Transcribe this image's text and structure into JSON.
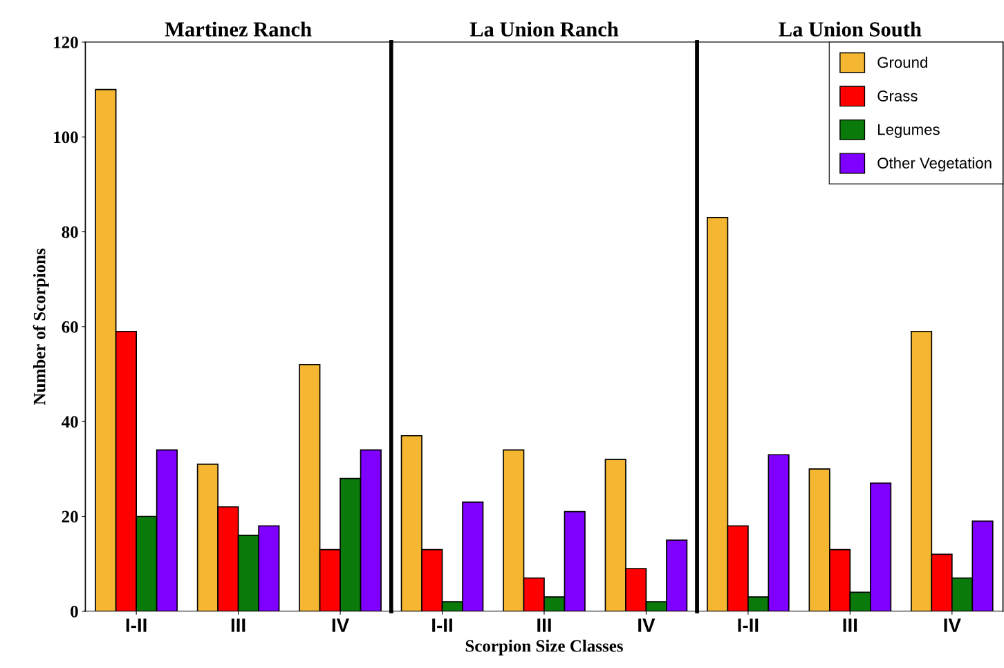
{
  "chart_data": [
    {
      "type": "bar",
      "title": "Martinez Ranch",
      "ylabel": "Number of Scorpions",
      "categories": [
        "I-II",
        "III",
        "IV"
      ],
      "ylim": [
        0,
        120
      ],
      "yticks": [
        0,
        20,
        40,
        60,
        80,
        100,
        120
      ],
      "grid": false,
      "series": [
        {
          "color": "#f5b731",
          "values": [
            110,
            31,
            52
          ]
        },
        {
          "color": "#ff0000",
          "values": [
            59,
            22,
            13
          ]
        },
        {
          "color": "#0a7a0a",
          "values": [
            20,
            16,
            28
          ]
        },
        {
          "color": "#8000ff",
          "values": [
            34,
            18,
            34
          ]
        }
      ]
    },
    {
      "type": "bar",
      "title": "La Union Ranch",
      "xlabel": "Scorpion Size Classes",
      "categories": [
        "I-II",
        "III",
        "IV"
      ],
      "ylim": [
        0,
        120
      ],
      "tick_labels": "x",
      "grid": false,
      "series": [
        {
          "color": "#f5b731",
          "values": [
            37,
            34,
            32
          ]
        },
        {
          "color": "#ff0000",
          "values": [
            13,
            7,
            9
          ]
        },
        {
          "color": "#0a7a0a",
          "values": [
            2,
            3,
            2
          ]
        },
        {
          "color": "#8000ff",
          "values": [
            23,
            21,
            15
          ]
        }
      ]
    },
    {
      "type": "bar",
      "title": "La Union South",
      "categories": [
        "I-II",
        "III",
        "IV"
      ],
      "ylim": [
        0,
        120
      ],
      "tick_labels": "x",
      "grid": false,
      "legend": "top right",
      "series": [
        {
          "name": "Ground",
          "color": "#f5b731",
          "values": [
            83,
            30,
            59
          ]
        },
        {
          "name": "Grass",
          "color": "#ff0000",
          "values": [
            18,
            13,
            12
          ]
        },
        {
          "name": "Legumes",
          "color": "#0a7a0a",
          "values": [
            3,
            4,
            7
          ]
        },
        {
          "name": "Other Vegetation",
          "color": "#8000ff",
          "values": [
            33,
            27,
            19
          ]
        }
      ]
    }
  ]
}
